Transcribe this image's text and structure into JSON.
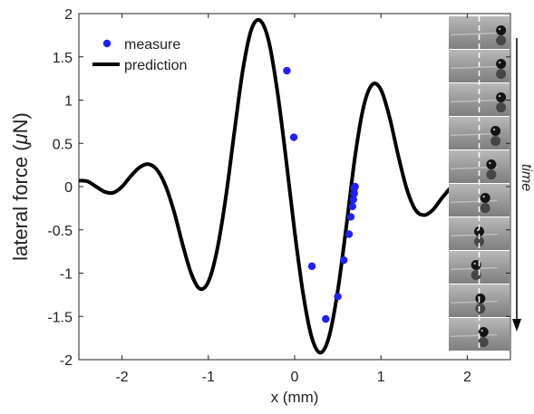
{
  "chart_data": {
    "type": "scatter",
    "xlabel": "x (mm)",
    "ylabel_prefix": "lateral force (",
    "ylabel_unit_symbol": "μ",
    "ylabel_suffix": "N)",
    "xlim": [
      -2.5,
      2.5
    ],
    "ylim": [
      -2,
      2
    ],
    "xticks": [
      -2,
      -1,
      0,
      1,
      2
    ],
    "yticks": [
      -2,
      -1.5,
      -1,
      -0.5,
      0,
      0.5,
      1,
      1.5,
      2
    ],
    "xtick_labels": [
      "-2",
      "-1",
      "0",
      "1",
      "2"
    ],
    "ytick_labels": [
      "-2",
      "-1.5",
      "-1",
      "-0.5",
      "0",
      "0.5",
      "1",
      "1.5",
      "2"
    ],
    "grid": false,
    "legend_position": "top-left",
    "series": [
      {
        "name": "measure",
        "type": "scatter",
        "color": "#1f1fff",
        "x": [
          -0.09,
          -0.01,
          0.2,
          0.36,
          0.5,
          0.57,
          0.63,
          0.65,
          0.67,
          0.68,
          0.69,
          0.69,
          0.7
        ],
        "y": [
          1.34,
          0.57,
          -0.92,
          -1.53,
          -1.27,
          -0.85,
          -0.55,
          -0.35,
          -0.23,
          -0.15,
          -0.08,
          -0.02,
          0.0
        ]
      },
      {
        "name": "prediction",
        "type": "line",
        "color": "#000000",
        "x": [
          -2.5,
          -2.4,
          -2.3,
          -2.2,
          -2.1,
          -2.0,
          -1.9,
          -1.8,
          -1.7,
          -1.6,
          -1.5,
          -1.4,
          -1.3,
          -1.2,
          -1.1,
          -1.0,
          -0.9,
          -0.8,
          -0.7,
          -0.6,
          -0.5,
          -0.4,
          -0.3,
          -0.2,
          -0.1,
          0.0,
          0.1,
          0.2,
          0.3,
          0.4,
          0.5,
          0.6,
          0.7,
          0.8,
          0.9,
          1.0,
          1.1,
          1.2,
          1.3,
          1.4,
          1.5,
          1.6,
          1.7,
          1.8
        ],
        "y": [
          0.07,
          0.06,
          0.0,
          -0.06,
          -0.07,
          0.0,
          0.12,
          0.22,
          0.26,
          0.2,
          0.02,
          -0.28,
          -0.66,
          -1.0,
          -1.18,
          -1.1,
          -0.74,
          -0.14,
          0.62,
          1.35,
          1.82,
          1.92,
          1.68,
          1.1,
          0.32,
          -0.52,
          -1.25,
          -1.75,
          -1.92,
          -1.73,
          -1.2,
          -0.45,
          0.35,
          0.93,
          1.18,
          1.12,
          0.8,
          0.36,
          -0.03,
          -0.27,
          -0.33,
          -0.27,
          -0.14,
          -0.02
        ]
      }
    ],
    "inset": {
      "description_label": "time",
      "frames": 10,
      "ball_x_fraction": [
        0.86,
        0.86,
        0.86,
        0.77,
        0.7,
        0.6,
        0.5,
        0.45,
        0.52,
        0.57
      ]
    }
  }
}
